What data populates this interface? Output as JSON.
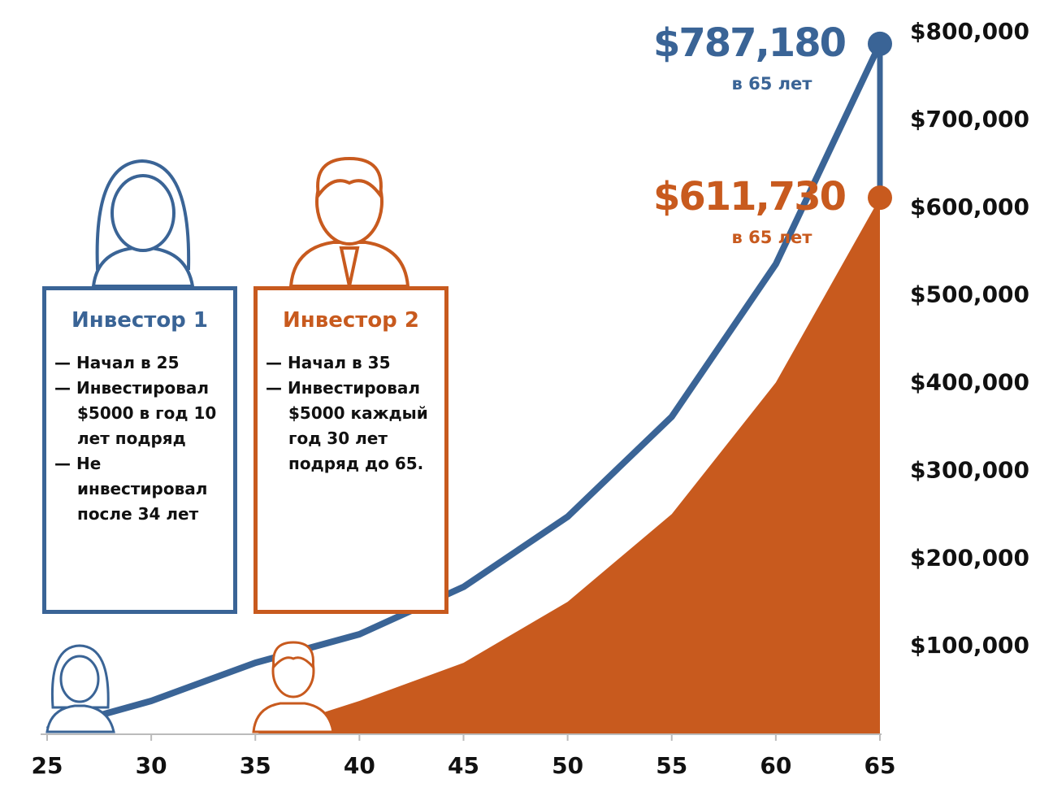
{
  "chart_data": {
    "type": "line",
    "x": [
      25,
      30,
      35,
      40,
      45,
      50,
      55,
      60,
      65
    ],
    "xlim": [
      25,
      65
    ],
    "xticks": [
      25,
      30,
      35,
      40,
      45,
      50,
      55,
      60,
      65
    ],
    "ylim": [
      0,
      800000
    ],
    "yticks": [
      {
        "value": 100000,
        "label": "$100,000"
      },
      {
        "value": 200000,
        "label": "$200,000"
      },
      {
        "value": 300000,
        "label": "$300,000"
      },
      {
        "value": 400000,
        "label": "$400,000"
      },
      {
        "value": 500000,
        "label": "$500,000"
      },
      {
        "value": 600000,
        "label": "$600,000"
      },
      {
        "value": 700000,
        "label": "$700,000"
      },
      {
        "value": 800000,
        "label": "$800,000"
      }
    ],
    "series": [
      {
        "name": "Инвестор 1",
        "color": "#3a6496",
        "area": false,
        "values": [
          5000,
          38000,
          81500,
          114000,
          168000,
          248000,
          362000,
          536000,
          787180
        ],
        "end_label": "$787,180",
        "end_note": "в 65 лет",
        "items": [
          "— Начал в 25",
          "— Инвестировал $5000 в год 10 лет подряд",
          "— Не инвестировал после 34 лет"
        ]
      },
      {
        "name": "Инвестор 2",
        "color": "#c85a1e",
        "area": true,
        "values": [
          null,
          null,
          0,
          38000,
          81500,
          151000,
          251000,
          401000,
          611730
        ],
        "end_label": "$611,730",
        "end_note": "в 65 лет",
        "items": [
          "— Начал в 35",
          "— Инвестировал $5000 каждый год 30 лет подряд до 65."
        ]
      }
    ]
  }
}
